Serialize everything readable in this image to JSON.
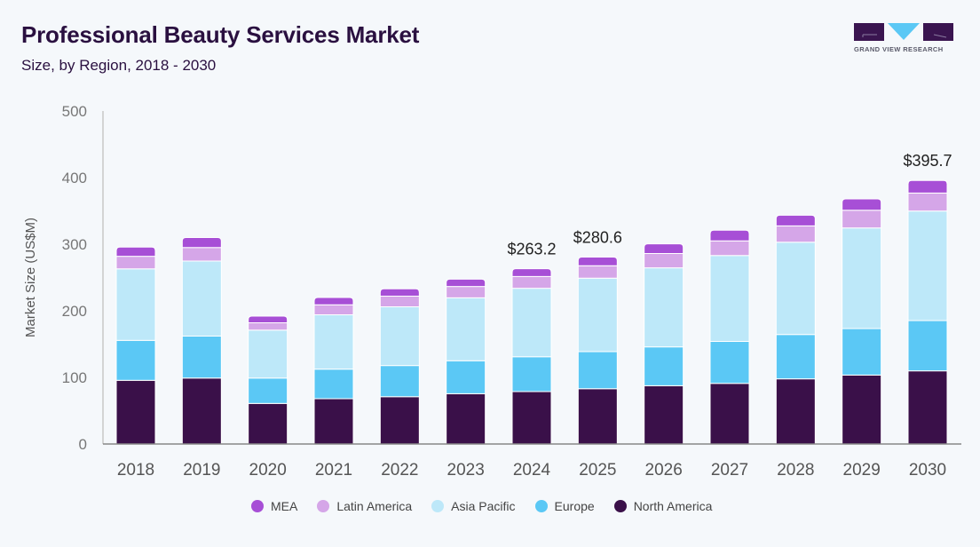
{
  "header": {
    "title": "Professional Beauty Services Market",
    "subtitle": "Size, by Region, 2018 - 2030"
  },
  "logo": {
    "text": "GRAND VIEW RESEARCH",
    "colors": {
      "dark": "#3a1550",
      "accent": "#5bc8f5"
    }
  },
  "chart_data": {
    "type": "bar",
    "stacked": true,
    "title": "Professional Beauty Services Market",
    "subtitle": "Size, by Region, 2018 - 2030",
    "xlabel": "",
    "ylabel": "Market Size (US$M)",
    "ylim": [
      0,
      500
    ],
    "yticks": [
      0,
      100,
      200,
      300,
      400,
      500
    ],
    "grid": false,
    "legend_position": "bottom",
    "categories": [
      "2018",
      "2019",
      "2020",
      "2021",
      "2022",
      "2023",
      "2024",
      "2025",
      "2026",
      "2027",
      "2028",
      "2029",
      "2030"
    ],
    "series": [
      {
        "name": "North America",
        "color": "#3a1049",
        "values": [
          95.6,
          99.0,
          60.9,
          68.0,
          71.0,
          75.5,
          78.7,
          83.0,
          87.5,
          91.0,
          97.8,
          103.5,
          109.8
        ]
      },
      {
        "name": "Europe",
        "color": "#5bc8f5",
        "values": [
          60.0,
          63.0,
          38.1,
          44.4,
          46.8,
          49.5,
          52.3,
          55.7,
          58.3,
          63.0,
          66.6,
          69.8,
          75.5
        ]
      },
      {
        "name": "Asia Pacific",
        "color": "#bde8f9",
        "values": [
          107.4,
          112.7,
          72.0,
          81.6,
          88.2,
          94.5,
          102.8,
          110.3,
          118.7,
          129.0,
          138.6,
          151.1,
          164.5
        ]
      },
      {
        "name": "Latin America",
        "color": "#d5a6e8",
        "values": [
          18.8,
          20.3,
          11.0,
          15.0,
          16.0,
          17.0,
          17.7,
          18.6,
          21.5,
          22.0,
          24.5,
          26.6,
          27.1
        ]
      },
      {
        "name": "MEA",
        "color": "#a74fd6",
        "values": [
          13.8,
          15.0,
          10.0,
          11.0,
          11.0,
          11.0,
          11.7,
          13.0,
          14.5,
          16.0,
          16.0,
          17.0,
          18.8
        ]
      }
    ],
    "annotations": [
      {
        "category": "2024",
        "text": "$263.2",
        "value": 263.2
      },
      {
        "category": "2025",
        "text": "$280.6",
        "value": 280.6
      },
      {
        "category": "2030",
        "text": "$395.7",
        "value": 395.7
      }
    ],
    "legend": [
      {
        "name": "MEA",
        "color": "#a74fd6"
      },
      {
        "name": "Latin America",
        "color": "#d5a6e8"
      },
      {
        "name": "Asia Pacific",
        "color": "#bde8f9"
      },
      {
        "name": "Europe",
        "color": "#5bc8f5"
      },
      {
        "name": "North America",
        "color": "#3a1049"
      }
    ]
  }
}
